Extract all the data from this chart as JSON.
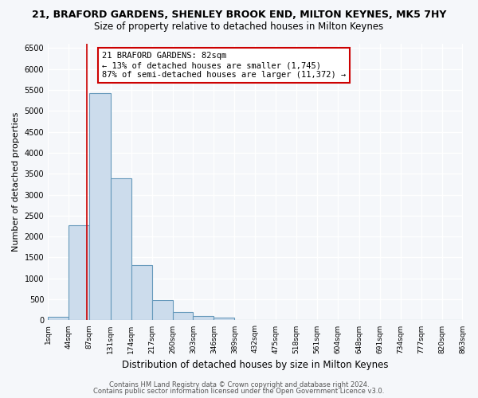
{
  "title": "21, BRAFORD GARDENS, SHENLEY BROOK END, MILTON KEYNES, MK5 7HY",
  "subtitle": "Size of property relative to detached houses in Milton Keynes",
  "xlabel": "Distribution of detached houses by size in Milton Keynes",
  "ylabel": "Number of detached properties",
  "bin_edges": [
    1,
    44,
    87,
    131,
    174,
    217,
    260,
    303,
    346,
    389,
    432,
    475,
    518,
    561,
    604,
    648,
    691,
    734,
    777,
    820,
    863
  ],
  "bar_heights": [
    75,
    2270,
    5430,
    3390,
    1310,
    475,
    200,
    100,
    65,
    0,
    0,
    0,
    0,
    0,
    0,
    0,
    0,
    0,
    0,
    0
  ],
  "bar_color": "#ccdcec",
  "bar_edge_color": "#6699bb",
  "property_line_x": 82,
  "property_line_color": "#cc0000",
  "annotation_text": "21 BRAFORD GARDENS: 82sqm\n← 13% of detached houses are smaller (1,745)\n87% of semi-detached houses are larger (11,372) →",
  "annotation_box_color": "#ffffff",
  "annotation_box_edge_color": "#cc0000",
  "ylim": [
    0,
    6600
  ],
  "yticks": [
    0,
    500,
    1000,
    1500,
    2000,
    2500,
    3000,
    3500,
    4000,
    4500,
    5000,
    5500,
    6000,
    6500
  ],
  "tick_labels": [
    "1sqm",
    "44sqm",
    "87sqm",
    "131sqm",
    "174sqm",
    "217sqm",
    "260sqm",
    "303sqm",
    "346sqm",
    "389sqm",
    "432sqm",
    "475sqm",
    "518sqm",
    "561sqm",
    "604sqm",
    "648sqm",
    "691sqm",
    "734sqm",
    "777sqm",
    "820sqm",
    "863sqm"
  ],
  "footer_line1": "Contains HM Land Registry data © Crown copyright and database right 2024.",
  "footer_line2": "Contains public sector information licensed under the Open Government Licence v3.0.",
  "bg_color": "#f5f7fa",
  "grid_color": "#ffffff",
  "title_fontsize": 9,
  "subtitle_fontsize": 8.5
}
